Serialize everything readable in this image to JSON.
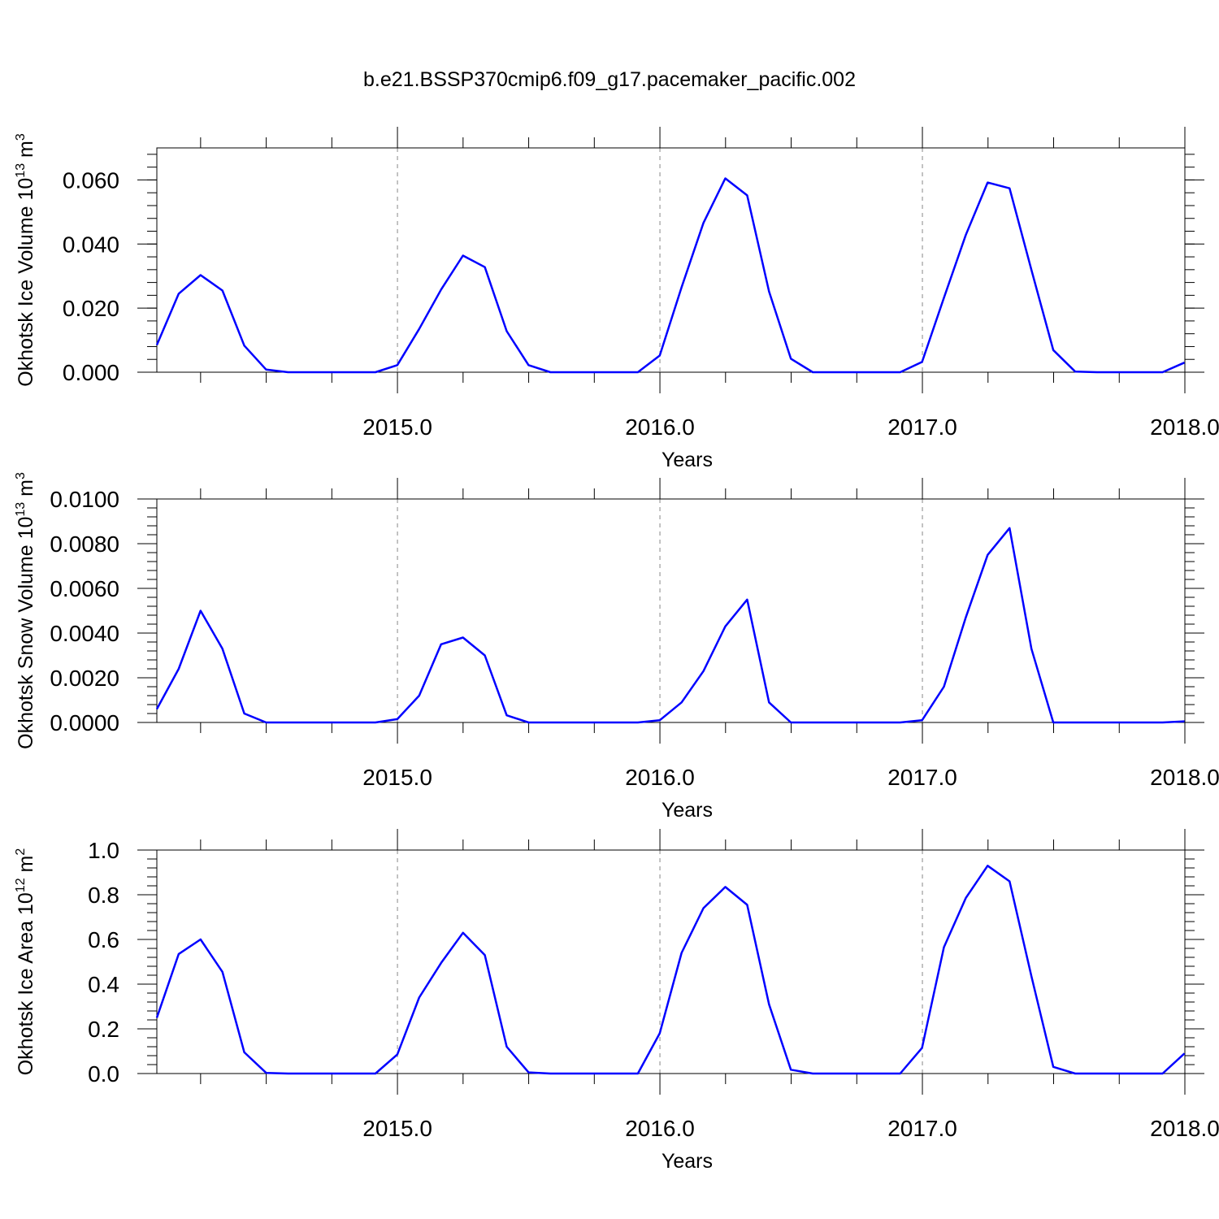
{
  "figure": {
    "title": "b.e21.BSSP370cmip6.f09_g17.pacemaker_pacific.002",
    "line_color": "#0000ff",
    "ref_line_color": "#888888"
  },
  "chart_data": [
    {
      "type": "line",
      "ylabel": "Okhotsk Ice Volume 10^13 m^3",
      "ylabel_parts": {
        "main": "Okhotsk Ice Volume 10",
        "exp1": "13",
        "unit": " m",
        "exp2": "3"
      },
      "xlabel": "Years",
      "x_ticks": [
        "2015.0",
        "2016.0",
        "2017.0",
        "2018.0"
      ],
      "x_tick_values": [
        2015,
        2016,
        2017,
        2018
      ],
      "xlim": [
        2014.0833,
        2018.0
      ],
      "ylim": [
        0,
        0.07
      ],
      "y_ticks": [
        "0.000",
        "0.020",
        "0.040",
        "0.060"
      ],
      "y_tick_values": [
        0,
        0.02,
        0.04,
        0.06
      ],
      "y_minor_step": 0.004,
      "reference_lines": [
        2015,
        2016,
        2017
      ],
      "series": [
        {
          "x_start": 2014.0833,
          "x_step": 0.0833,
          "values": [
            0.0085,
            0.0245,
            0.0303,
            0.0255,
            0.0083,
            0.0008,
            0,
            0,
            0,
            0,
            0,
            0.0022,
            0.0135,
            0.0258,
            0.0364,
            0.0328,
            0.0128,
            0.0022,
            0,
            0,
            0,
            0,
            0,
            0.0052,
            0.0265,
            0.0466,
            0.0605,
            0.0552,
            0.0252,
            0.0042,
            0,
            0,
            0,
            0,
            0,
            0.0032,
            0.0232,
            0.0428,
            0.0592,
            0.0574,
            0.0319,
            0.0069,
            0.0002,
            0,
            0,
            0,
            0,
            0.003
          ]
        }
      ]
    },
    {
      "type": "line",
      "ylabel": "Okhotsk Snow Volume 10^13 m^3",
      "ylabel_parts": {
        "main": "Okhotsk Snow Volume 10",
        "exp1": "13",
        "unit": " m",
        "exp2": "3"
      },
      "xlabel": "Years",
      "x_ticks": [
        "2015.0",
        "2016.0",
        "2017.0",
        "2018.0"
      ],
      "x_tick_values": [
        2015,
        2016,
        2017,
        2018
      ],
      "xlim": [
        2014.0833,
        2018.0
      ],
      "ylim": [
        0,
        0.01
      ],
      "y_ticks": [
        "0.0000",
        "0.0020",
        "0.0040",
        "0.0060",
        "0.0080",
        "0.0100"
      ],
      "y_tick_values": [
        0,
        0.002,
        0.004,
        0.006,
        0.008,
        0.01
      ],
      "y_minor_step": 0.0004,
      "reference_lines": [
        2015,
        2016,
        2017
      ],
      "series": [
        {
          "x_start": 2014.0833,
          "x_step": 0.0833,
          "values": [
            0.0006,
            0.0024,
            0.005,
            0.0033,
            0.0004,
            0,
            0,
            0,
            0,
            0,
            0,
            0.00015,
            0.0012,
            0.0035,
            0.0038,
            0.003,
            0.00032,
            0,
            0,
            0,
            0,
            0,
            0,
            0.0001,
            0.0009,
            0.0023,
            0.0043,
            0.0055,
            0.0009,
            0,
            0,
            0,
            0,
            0,
            0,
            0.0001,
            0.0016,
            0.0047,
            0.0075,
            0.0087,
            0.0033,
            0,
            0,
            0,
            0,
            0,
            0,
            5e-05
          ]
        }
      ]
    },
    {
      "type": "line",
      "ylabel": "Okhotsk Ice Area 10^12 m^2",
      "ylabel_parts": {
        "main": "Okhotsk Ice Area 10",
        "exp1": "12",
        "unit": " m",
        "exp2": "2"
      },
      "xlabel": "Years",
      "x_ticks": [
        "2015.0",
        "2016.0",
        "2017.0",
        "2018.0"
      ],
      "x_tick_values": [
        2015,
        2016,
        2017,
        2018
      ],
      "xlim": [
        2014.0833,
        2018.0
      ],
      "ylim": [
        0,
        1.0
      ],
      "y_ticks": [
        "0.0",
        "0.2",
        "0.4",
        "0.6",
        "0.8",
        "1.0"
      ],
      "y_tick_values": [
        0,
        0.2,
        0.4,
        0.6,
        0.8,
        1.0
      ],
      "y_minor_step": 0.04,
      "reference_lines": [
        2015,
        2016,
        2017
      ],
      "series": [
        {
          "x_start": 2014.0833,
          "x_step": 0.0833,
          "values": [
            0.25,
            0.535,
            0.6,
            0.455,
            0.095,
            0.003,
            0,
            0,
            0,
            0,
            0,
            0.085,
            0.34,
            0.495,
            0.63,
            0.53,
            0.12,
            0.005,
            0,
            0,
            0,
            0,
            0,
            0.18,
            0.54,
            0.74,
            0.835,
            0.755,
            0.31,
            0.017,
            0,
            0,
            0,
            0,
            0,
            0.115,
            0.565,
            0.785,
            0.93,
            0.86,
            0.435,
            0.03,
            0,
            0,
            0,
            0,
            0,
            0.09
          ]
        }
      ]
    }
  ]
}
